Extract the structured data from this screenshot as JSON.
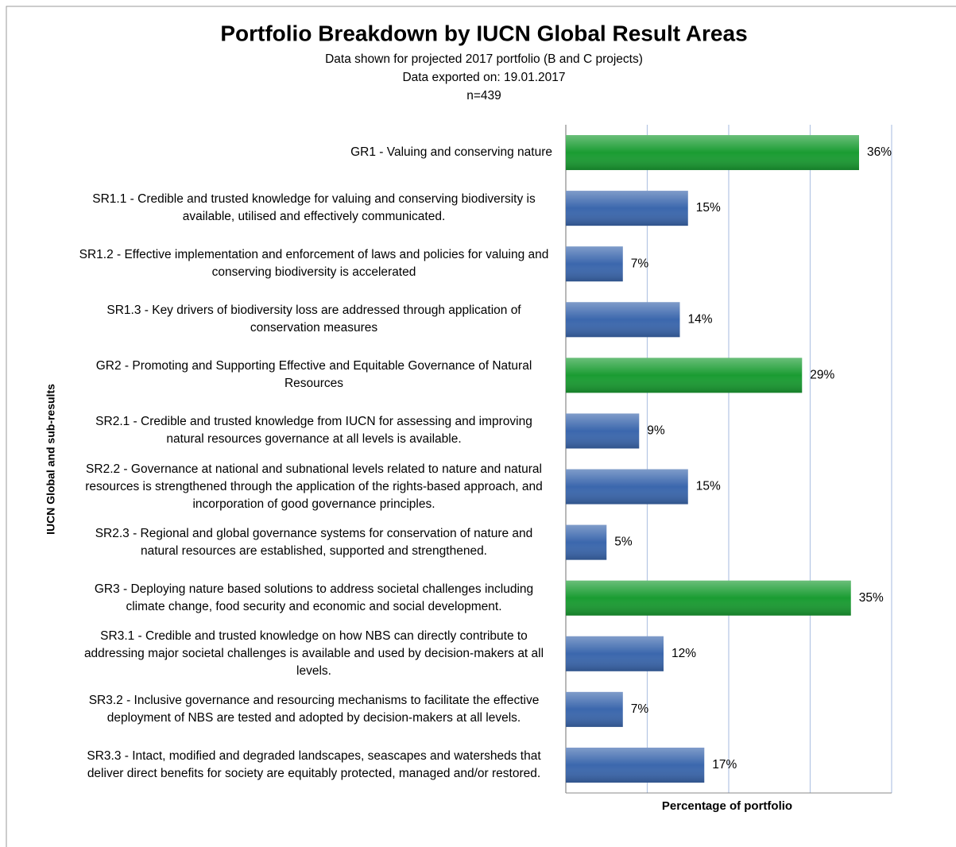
{
  "chart_data": {
    "type": "bar",
    "orientation": "horizontal",
    "title": "Portfolio Breakdown by IUCN Global Result Areas",
    "subtitle": [
      "Data shown for projected 2017 portfolio (B and C projects)",
      "Data exported on: 19.01.2017",
      "n=439"
    ],
    "y_label": "IUCN Global and sub-results",
    "x_label": "Percentage of portfolio",
    "categories": [
      "GR1 - Valuing and conserving nature",
      "SR1.1 - Credible and trusted knowledge for valuing and conserving biodiversity is available, utilised and effectively communicated.",
      "SR1.2 - Effective implementation and enforcement of laws and policies for valuing and conserving biodiversity is accelerated",
      "SR1.3 - Key drivers of biodiversity loss are addressed through application of conservation measures",
      "GR2 - Promoting and Supporting Effective and Equitable Governance of Natural Resources",
      "SR2.1 - Credible and trusted knowledge from IUCN for assessing and improving natural resources governance at all levels is available.",
      "SR2.2 - Governance at national and subnational levels related to nature and natural resources is strengthened through the application of the rights-based approach, and incorporation of good governance principles.",
      "SR2.3 - Regional and global governance systems for conservation of nature and natural resources are established, supported and strengthened.",
      "GR3 - Deploying nature based solutions to address societal challenges including climate change, food security and economic and social development.",
      "SR3.1 - Credible and trusted knowledge on how NBS can directly contribute to addressing major societal challenges is available and used by decision-makers at all levels.",
      "SR3.2 - Inclusive governance and resourcing mechanisms to facilitate the effective deployment of NBS are tested and adopted by decision-makers at all levels.",
      "SR3.3 - Intact, modified and degraded landscapes, seascapes and watersheds that deliver direct benefits for society are equitably protected, managed and/or restored."
    ],
    "values": [
      36,
      15,
      7,
      14,
      29,
      9,
      15,
      5,
      35,
      12,
      7,
      17
    ],
    "value_labels": [
      "36%",
      "15%",
      "7%",
      "14%",
      "29%",
      "9%",
      "15%",
      "5%",
      "35%",
      "12%",
      "7%",
      "17%"
    ],
    "colors": [
      "#1a9c32",
      "#3b67ad",
      "#3b67ad",
      "#3b67ad",
      "#1a9c32",
      "#3b67ad",
      "#3b67ad",
      "#3b67ad",
      "#1a9c32",
      "#3b67ad",
      "#3b67ad",
      "#3b67ad"
    ],
    "xlim": [
      0,
      40
    ],
    "xticks": [
      0,
      10,
      20,
      30,
      40
    ],
    "grid": true
  }
}
